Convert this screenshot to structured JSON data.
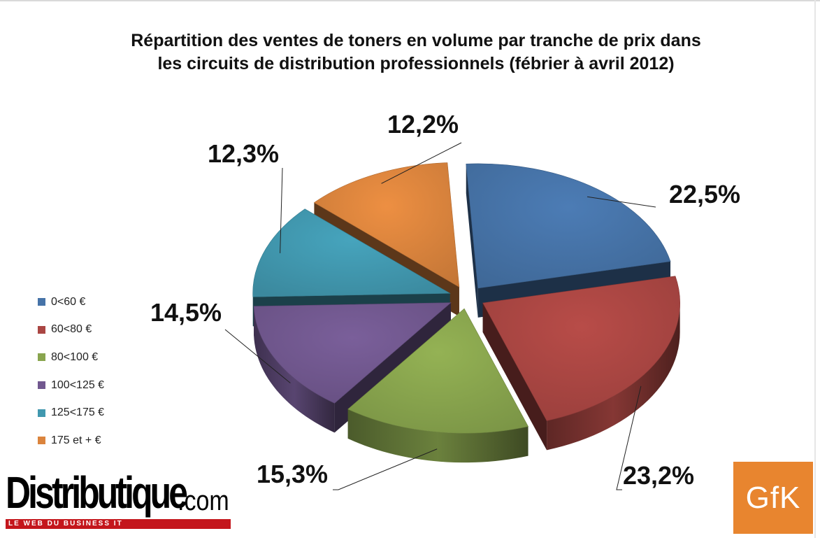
{
  "colors": {
    "s1": "#4673a8",
    "s2": "#aa4643",
    "s3": "#89a54e",
    "s4": "#71588f",
    "s5": "#4198af",
    "s6": "#db843d"
  },
  "chart_data": {
    "type": "pie",
    "style": "3d-exploded",
    "title": "Répartition des ventes de toners en volume par tranche de prix dans les circuits de distribution professionnels (fébrier à avril 2012)",
    "title_lines": [
      "Répartition des ventes de toners en volume par tranche de prix dans",
      "les circuits de distribution professionnels (fébrier à avril 2012)"
    ],
    "legend_position": "left",
    "categories": [
      "0<60 €",
      "60<80 €",
      "80<100 €",
      "100<125 €",
      "125<175 €",
      "175 et + €"
    ],
    "values": [
      22.5,
      23.2,
      15.3,
      14.5,
      12.3,
      12.2
    ],
    "value_labels": [
      "22,5%",
      "23,2%",
      "15,3%",
      "14,5%",
      "12,3%",
      "12,2%"
    ],
    "unit": "%"
  },
  "logos": {
    "left_word": "Distributique",
    "left_tld": ".com",
    "left_tagline": "LE WEB DU BUSINESS IT",
    "right": "GfK"
  }
}
